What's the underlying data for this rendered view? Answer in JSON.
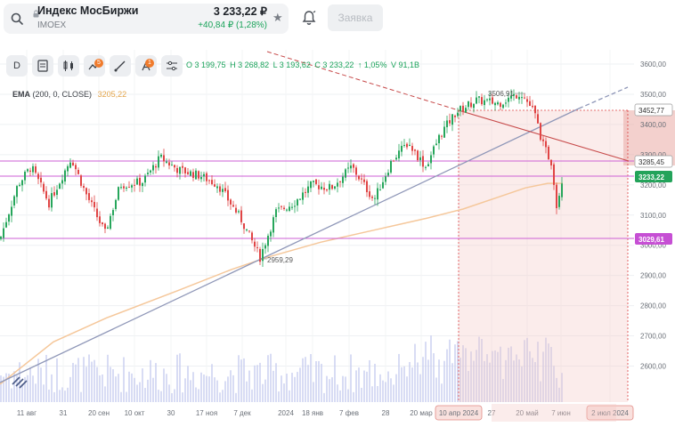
{
  "header": {
    "instrument_name": "Индекс МосБиржи",
    "instrument_code": "IMOEX",
    "price": "3 233,22 ₽",
    "change": "+40,84 ₽ (1,28%)",
    "order_button": "Заявка"
  },
  "toolbar": {
    "timeframe": "D",
    "indicators_badge": "5",
    "drawings_badge": "1"
  },
  "ohlc": {
    "open": "O 3 199,75",
    "high": "H 3 268,82",
    "low": "L 3 193,62",
    "close": "C 3 233,22",
    "change_pct": "↑ 1,05%",
    "volume": "V 91,1B"
  },
  "ema": {
    "label": "EMA",
    "params": "(200, 0, CLOSE)",
    "value": "3205,22"
  },
  "chart_data": {
    "type": "candlestick",
    "y_axis": {
      "range": [
        2500,
        3600
      ],
      "ticks": [
        "3600,00",
        "3500,00",
        "3400,00",
        "3300,00",
        "3200,00",
        "3100,00",
        "3000,00",
        "2900,00",
        "2800,00",
        "2700,00",
        "2600,00"
      ]
    },
    "x_axis": {
      "ticks": [
        "11 авг",
        "31",
        "20 сен",
        "10 окт",
        "30",
        "17 ноя",
        "7 дек",
        "2024",
        "18 янв",
        "7 фев",
        "28",
        "20 мар",
        "10 апр 2024",
        "27",
        "20 май",
        "7 июн",
        "2 июл 2024"
      ]
    },
    "price_labels": [
      {
        "value": "3452,77",
        "style": "outline"
      },
      {
        "value": "3285,45",
        "style": "outline"
      },
      {
        "value": "3233,22",
        "style": "green"
      },
      {
        "value": "3029,61",
        "style": "purple"
      }
    ],
    "annotations": [
      "3506,91",
      "2959,29"
    ],
    "horizontal_levels": [
      3285,
      3236,
      3030
    ],
    "colors": {
      "up": "#26a65b",
      "down": "#e04545",
      "ema": "#f5c79a",
      "level": "#cc5fd6",
      "trend": "#8f97b8",
      "channel": "#c74a4a",
      "volume": "#c8cdf0"
    }
  }
}
